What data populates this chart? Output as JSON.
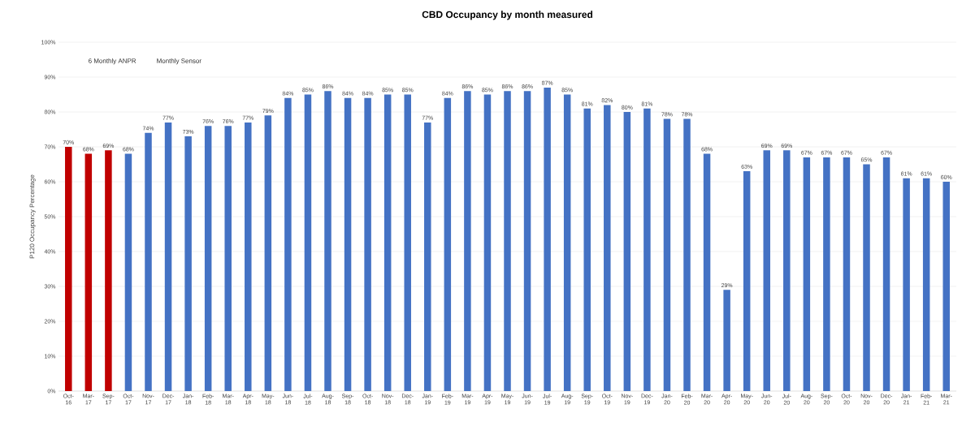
{
  "chart_data": {
    "type": "bar",
    "title": "CBD Occupancy by month measured",
    "ylabel": "P120 Occupancy Percentage",
    "annotations": [
      "6 Monthly ANPR",
      "Monthly Sensor"
    ],
    "categories": [
      "Oct-16",
      "Mar-17",
      "Sep-17",
      "Oct-17",
      "Nov-17",
      "Dec-17",
      "Jan-18",
      "Feb-18",
      "Mar-18",
      "Apr-18",
      "May-18",
      "Jun-18",
      "Jul-18",
      "Aug-18",
      "Sep-18",
      "Oct-18",
      "Nov-18",
      "Dec-18",
      "Jan-19",
      "Feb-19",
      "Mar-19",
      "Apr-19",
      "May-19",
      "Jun-19",
      "Jul-19",
      "Aug-19",
      "Sep-19",
      "Oct-19",
      "Nov-19",
      "Dec-19",
      "Jan-20",
      "Feb-20",
      "Mar-20",
      "Apr-20",
      "May-20",
      "Jun-20",
      "Jul-20",
      "Aug-20",
      "Sep-20",
      "Oct-20",
      "Nov-20",
      "Dec-20",
      "Jan-21",
      "Feb-21",
      "Mar-21"
    ],
    "values": [
      70,
      68,
      69,
      68,
      74,
      77,
      73,
      76,
      76,
      77,
      79,
      84,
      85,
      86,
      84,
      84,
      85,
      85,
      77,
      84,
      86,
      85,
      86,
      86,
      87,
      85,
      81,
      82,
      80,
      81,
      78,
      78,
      68,
      29,
      63,
      69,
      69,
      67,
      67,
      67,
      65,
      67,
      61,
      61,
      60
    ],
    "value_labels": [
      "70%",
      "68%",
      "69%",
      "68%",
      "74%",
      "77%",
      "73%",
      "76%",
      "76%",
      "77%",
      "79%",
      "84%",
      "85%",
      "86%",
      "84%",
      "84%",
      "85%",
      "85%",
      "77%",
      "84%",
      "86%",
      "85%",
      "86%",
      "86%",
      "87%",
      "85%",
      "81%",
      "82%",
      "80%",
      "81%",
      "78%",
      "78%",
      "68%",
      "29%",
      "63%",
      "69%",
      "69%",
      "67%",
      "67%",
      "67%",
      "65%",
      "67%",
      "61%",
      "61%",
      "60%"
    ],
    "colors": [
      "#c00000",
      "#c00000",
      "#c00000",
      "#4472c4",
      "#4472c4",
      "#4472c4",
      "#4472c4",
      "#4472c4",
      "#4472c4",
      "#4472c4",
      "#4472c4",
      "#4472c4",
      "#4472c4",
      "#4472c4",
      "#4472c4",
      "#4472c4",
      "#4472c4",
      "#4472c4",
      "#4472c4",
      "#4472c4",
      "#4472c4",
      "#4472c4",
      "#4472c4",
      "#4472c4",
      "#4472c4",
      "#4472c4",
      "#4472c4",
      "#4472c4",
      "#4472c4",
      "#4472c4",
      "#4472c4",
      "#4472c4",
      "#4472c4",
      "#4472c4",
      "#4472c4",
      "#4472c4",
      "#4472c4",
      "#4472c4",
      "#4472c4",
      "#4472c4",
      "#4472c4",
      "#4472c4",
      "#4472c4",
      "#4472c4",
      "#4472c4"
    ],
    "ylim": [
      0,
      100
    ],
    "yticks": [
      {
        "value": 0,
        "label": "0%"
      },
      {
        "value": 10,
        "label": "10%"
      },
      {
        "value": 20,
        "label": "20%"
      },
      {
        "value": 30,
        "label": "30%"
      },
      {
        "value": 40,
        "label": "40%"
      },
      {
        "value": 50,
        "label": "50%"
      },
      {
        "value": 60,
        "label": "60%"
      },
      {
        "value": 70,
        "label": "70%"
      },
      {
        "value": 80,
        "label": "80%"
      },
      {
        "value": 90,
        "label": "90%"
      },
      {
        "value": 100,
        "label": "100%"
      }
    ],
    "grid": "y"
  }
}
